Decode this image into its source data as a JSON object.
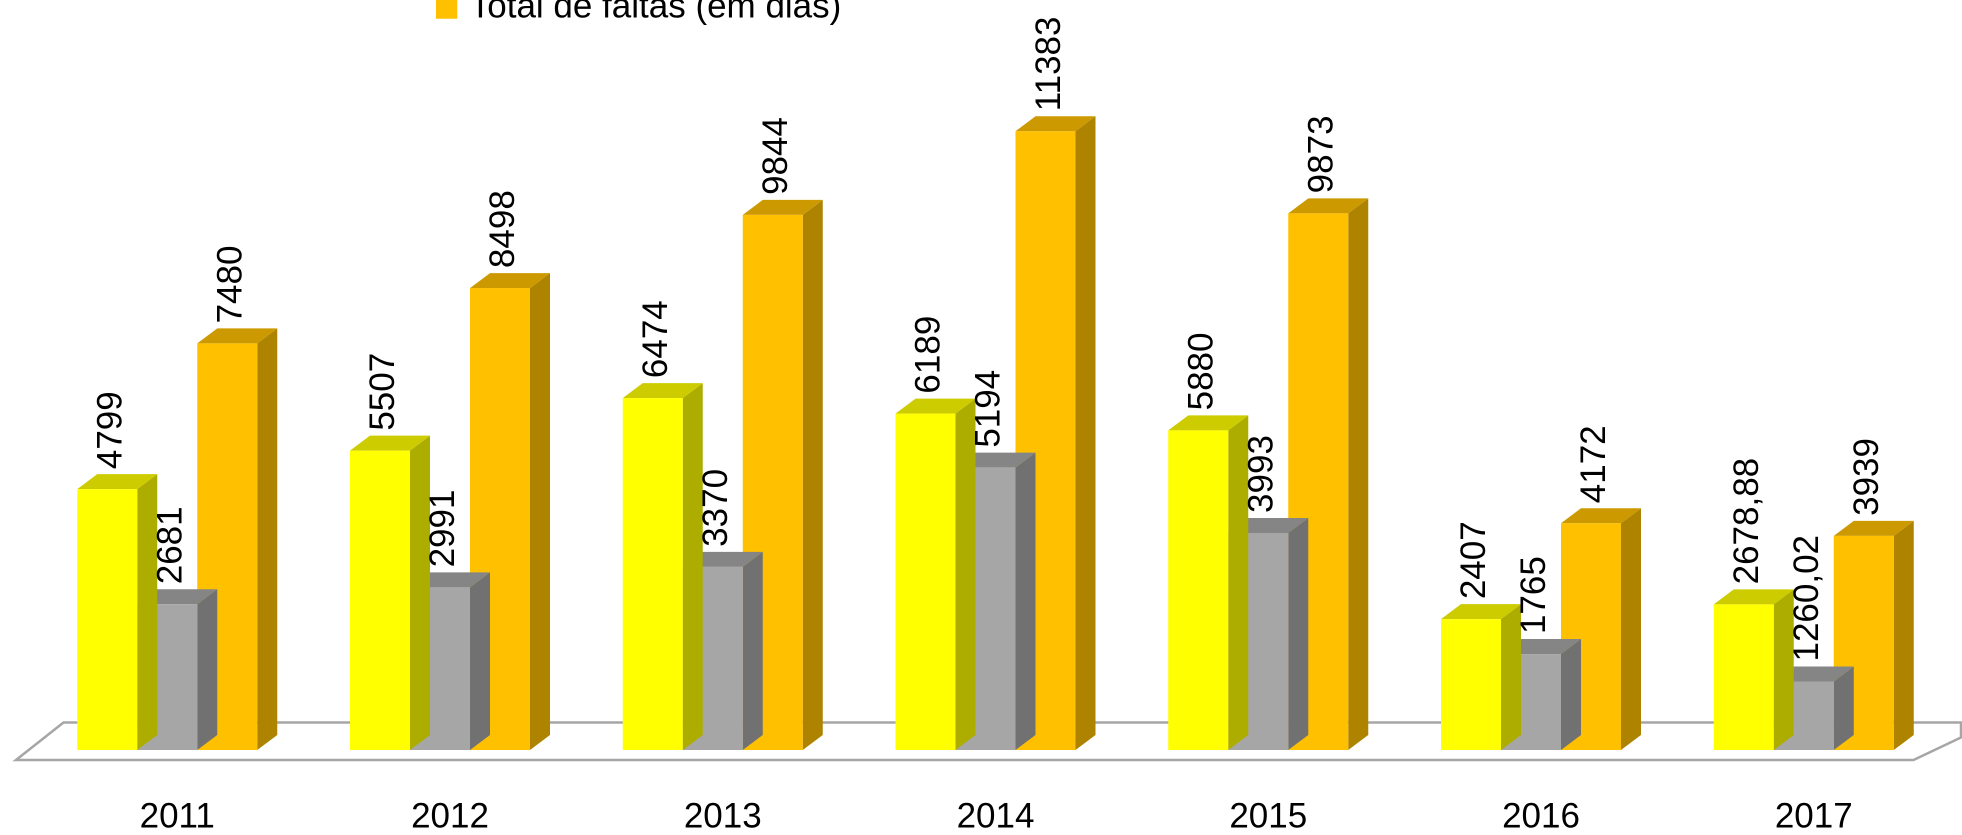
{
  "chart_data": {
    "type": "bar3d",
    "categories": [
      "2011",
      "2012",
      "2013",
      "2014",
      "2015",
      "2016",
      "2017"
    ],
    "series": [
      {
        "color": "#ffff00",
        "values": [
          4799,
          5507,
          6474,
          6189,
          5880,
          2407,
          2678.88
        ],
        "value_labels": [
          "4799",
          "5507",
          "6474",
          "6189",
          "5880",
          "2407",
          "2678,88"
        ]
      },
      {
        "color": "#a6a6a6",
        "values": [
          2681,
          2991,
          3370,
          5194,
          3993,
          1765,
          1260.02
        ],
        "value_labels": [
          "2681",
          "2991",
          "3370",
          "5194",
          "3993",
          "1765",
          "1260,02"
        ]
      },
      {
        "name": "Total de faltas (em dias)",
        "color": "#ffc000",
        "values": [
          7480,
          8498,
          9844,
          11383,
          9873,
          4172,
          3939
        ]
      }
    ]
  }
}
